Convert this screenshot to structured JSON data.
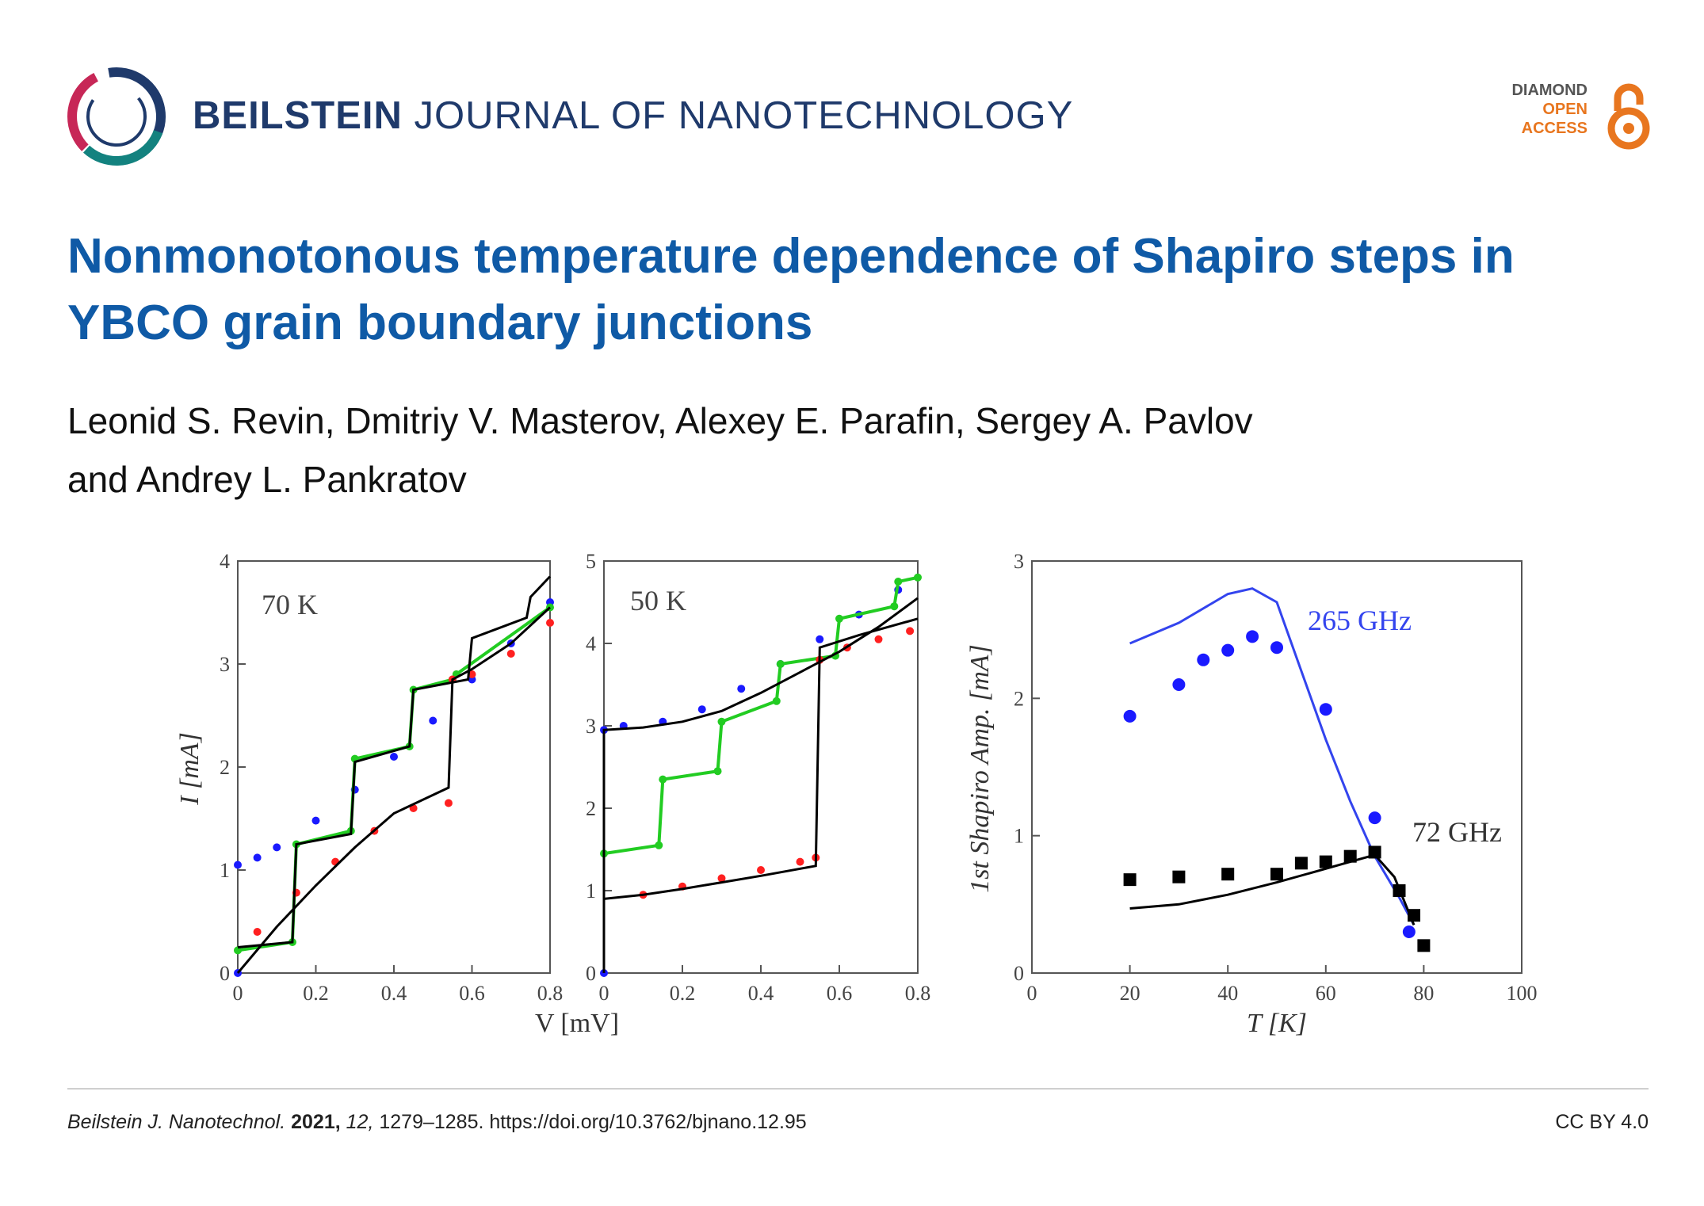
{
  "header": {
    "journal_bold": "BEILSTEIN",
    "journal_rest": "JOURNAL OF NANOTECHNOLOGY",
    "oa_line1": "DIAMOND",
    "oa_line2": "OPEN",
    "oa_line3": "ACCESS",
    "colors": {
      "navy": "#1f3a6b",
      "accent": "#e8761f",
      "title": "#0f5aa6"
    }
  },
  "article": {
    "title": "Nonmonotonous temperature dependence of Shapiro steps in YBCO grain boundary junctions",
    "authors_line1": "Leonid S. Revin, Dmitriy V. Masterov, Alexey E. Parafin, Sergey A. Pavlov",
    "authors_line2": "and Andrey L. Pankratov"
  },
  "footer": {
    "journal_abbrev": "Beilstein J. Nanotechnol.",
    "year": "2021,",
    "volume": "12,",
    "pages_doi": "1279–1285. https://doi.org/10.3762/bjnano.12.95",
    "license": "CC BY 4.0"
  },
  "chart_data": [
    {
      "type": "line",
      "title": "70 K",
      "xlabel": "V [mV]",
      "ylabel": "I [mA]",
      "xlim": [
        0,
        0.8
      ],
      "ylim": [
        0,
        4
      ],
      "xticks": [
        "0",
        "0.2",
        "0.4",
        "0.6",
        "0.8"
      ],
      "yticks": [
        "0",
        "1",
        "2",
        "3",
        "4"
      ],
      "series": [
        {
          "name": "blue data",
          "style": "markers",
          "color": "#1a1aff",
          "x": [
            0,
            0,
            0.05,
            0.1,
            0.2,
            0.3,
            0.4,
            0.5,
            0.6,
            0.7,
            0.8
          ],
          "y": [
            0,
            1.05,
            1.12,
            1.22,
            1.48,
            1.78,
            2.1,
            2.45,
            2.85,
            3.2,
            3.6
          ]
        },
        {
          "name": "green data",
          "style": "markers-line",
          "color": "#22cc22",
          "x": [
            0,
            0.14,
            0.15,
            0.29,
            0.3,
            0.44,
            0.45,
            0.55,
            0.56,
            0.8
          ],
          "y": [
            0.22,
            0.3,
            1.25,
            1.38,
            2.08,
            2.2,
            2.75,
            2.85,
            2.9,
            3.55
          ]
        },
        {
          "name": "red data",
          "style": "markers",
          "color": "#ff2020",
          "x": [
            0.05,
            0.15,
            0.25,
            0.35,
            0.45,
            0.54,
            0.55,
            0.6,
            0.7,
            0.8
          ],
          "y": [
            0.4,
            0.78,
            1.08,
            1.38,
            1.6,
            1.65,
            2.85,
            2.9,
            3.1,
            3.4
          ]
        },
        {
          "name": "black model 1",
          "style": "line",
          "color": "#000000",
          "x": [
            0,
            0.1,
            0.2,
            0.3,
            0.4,
            0.54,
            0.55,
            0.6,
            0.7,
            0.8
          ],
          "y": [
            0,
            0.45,
            0.85,
            1.22,
            1.55,
            1.8,
            2.85,
            2.95,
            3.2,
            3.55
          ]
        },
        {
          "name": "black model 2",
          "style": "line",
          "color": "#000000",
          "x": [
            0,
            0.14,
            0.15,
            0.29,
            0.3,
            0.44,
            0.45,
            0.59,
            0.6,
            0.74,
            0.75,
            0.8
          ],
          "y": [
            0.25,
            0.3,
            1.25,
            1.35,
            2.05,
            2.2,
            2.75,
            2.85,
            3.25,
            3.45,
            3.65,
            3.85
          ]
        }
      ]
    },
    {
      "type": "line",
      "title": "50 K",
      "xlabel": "",
      "ylabel": "",
      "xlim": [
        0,
        0.8
      ],
      "ylim": [
        0,
        5
      ],
      "xticks": [
        "0",
        "0.2",
        "0.4",
        "0.6",
        "0.8"
      ],
      "yticks": [
        "0",
        "1",
        "2",
        "3",
        "4",
        "5"
      ],
      "series": [
        {
          "name": "blue data",
          "style": "markers",
          "color": "#1a1aff",
          "x": [
            0,
            0,
            0.05,
            0.15,
            0.25,
            0.35,
            0.45,
            0.55,
            0.65,
            0.75
          ],
          "y": [
            0,
            2.95,
            3.0,
            3.05,
            3.2,
            3.45,
            3.75,
            4.05,
            4.35,
            4.65
          ]
        },
        {
          "name": "green data",
          "style": "markers-line",
          "color": "#22cc22",
          "x": [
            0,
            0.14,
            0.15,
            0.29,
            0.3,
            0.44,
            0.45,
            0.59,
            0.6,
            0.74,
            0.75,
            0.8
          ],
          "y": [
            1.45,
            1.55,
            2.35,
            2.45,
            3.05,
            3.3,
            3.75,
            3.85,
            4.3,
            4.45,
            4.75,
            4.8
          ]
        },
        {
          "name": "red data",
          "style": "markers",
          "color": "#ff2020",
          "x": [
            0.1,
            0.2,
            0.3,
            0.4,
            0.5,
            0.54,
            0.55,
            0.62,
            0.7,
            0.78
          ],
          "y": [
            0.95,
            1.05,
            1.15,
            1.25,
            1.35,
            1.4,
            3.8,
            3.95,
            4.05,
            4.15
          ]
        },
        {
          "name": "black model 1",
          "style": "line",
          "color": "#000000",
          "x": [
            0,
            0,
            0.1,
            0.2,
            0.3,
            0.4,
            0.54,
            0.55,
            0.65,
            0.8
          ],
          "y": [
            0,
            0.9,
            0.95,
            1.02,
            1.1,
            1.18,
            1.3,
            3.95,
            4.1,
            4.3
          ]
        },
        {
          "name": "black model 2",
          "style": "line",
          "color": "#000000",
          "x": [
            0,
            0,
            0.1,
            0.2,
            0.3,
            0.4,
            0.5,
            0.6,
            0.7,
            0.8
          ],
          "y": [
            0,
            2.95,
            2.98,
            3.05,
            3.18,
            3.4,
            3.65,
            3.9,
            4.2,
            4.55
          ]
        }
      ]
    },
    {
      "type": "scatter",
      "title": "",
      "xlabel": "T [K]",
      "ylabel": "1st Shapiro Amp. [mA]",
      "xlim": [
        0,
        100
      ],
      "ylim": [
        0,
        3
      ],
      "xticks": [
        "0",
        "20",
        "40",
        "60",
        "80",
        "100"
      ],
      "yticks": [
        "0",
        "1",
        "2",
        "3"
      ],
      "annotations": [
        "265 GHz",
        "72 GHz"
      ],
      "series": [
        {
          "name": "265 GHz data",
          "style": "circles",
          "color": "#1a1aff",
          "x": [
            20,
            30,
            35,
            40,
            45,
            50,
            60,
            70,
            77
          ],
          "y": [
            1.87,
            2.1,
            2.28,
            2.35,
            2.45,
            2.37,
            1.92,
            1.13,
            0.3
          ]
        },
        {
          "name": "265 GHz model",
          "style": "line",
          "color": "#3344ee",
          "x": [
            20,
            30,
            40,
            45,
            50,
            55,
            60,
            65,
            70,
            75,
            78
          ],
          "y": [
            2.4,
            2.55,
            2.76,
            2.8,
            2.7,
            2.2,
            1.7,
            1.25,
            0.85,
            0.55,
            0.35
          ]
        },
        {
          "name": "72 GHz data",
          "style": "squares",
          "color": "#000000",
          "x": [
            20,
            30,
            40,
            50,
            55,
            60,
            65,
            70,
            75,
            78,
            80
          ],
          "y": [
            0.68,
            0.7,
            0.72,
            0.72,
            0.8,
            0.81,
            0.85,
            0.88,
            0.6,
            0.42,
            0.2
          ]
        },
        {
          "name": "72 GHz model",
          "style": "line",
          "color": "#000000",
          "x": [
            20,
            30,
            40,
            50,
            60,
            65,
            70,
            74,
            78
          ],
          "y": [
            0.47,
            0.5,
            0.57,
            0.66,
            0.76,
            0.81,
            0.86,
            0.7,
            0.35
          ]
        }
      ]
    }
  ]
}
